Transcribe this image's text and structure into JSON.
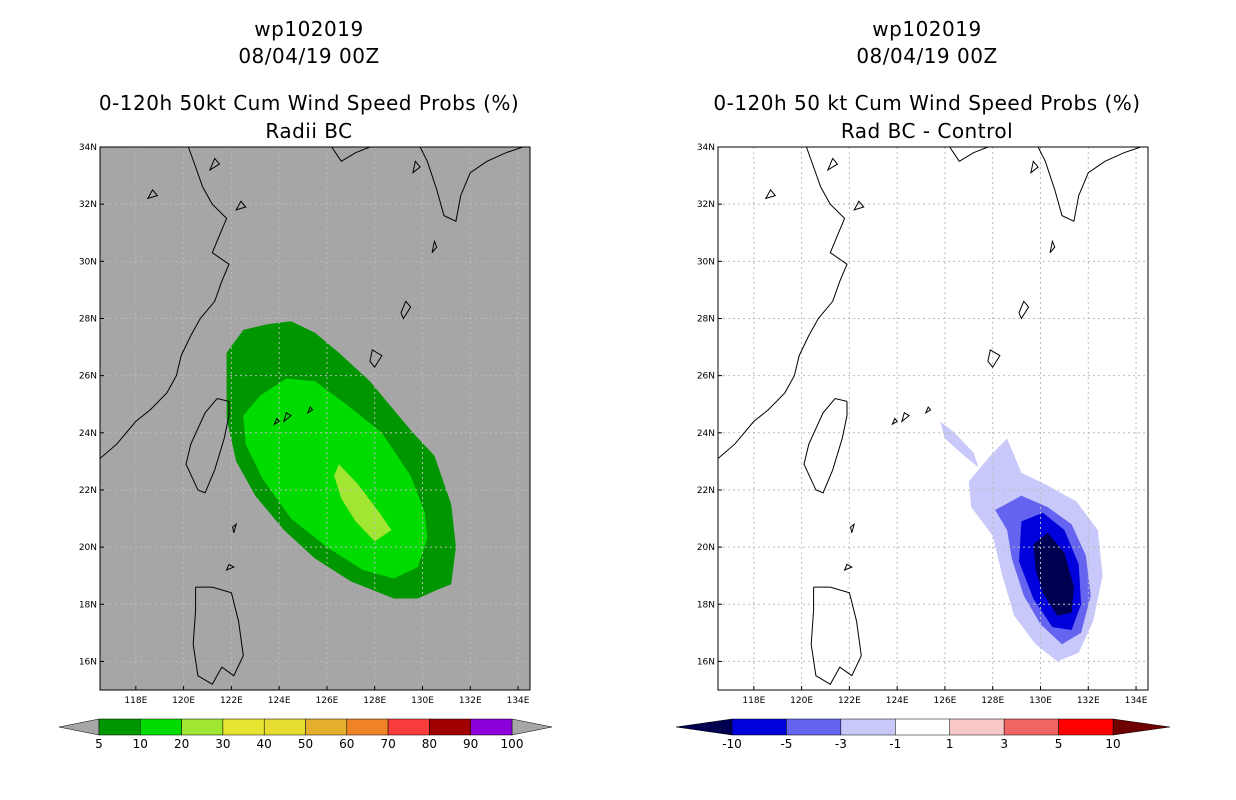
{
  "panels": [
    {
      "storm": "wp102019",
      "datetime": "08/04/19 00Z",
      "title": "0-120h 50kt Cum Wind Speed Probs (%)",
      "subtitle": "Radii BC"
    },
    {
      "storm": "wp102019",
      "datetime": "08/04/19 00Z",
      "title": "0-120h 50 kt Cum Wind Speed Probs (%)",
      "subtitle": "Rad BC - Control"
    }
  ],
  "colors": {
    "ocean_left": "#a6a6a6",
    "ocean_right": "#ffffff",
    "coast": "#000000",
    "grid": "#bbbbbb"
  },
  "chart_data": [
    {
      "type": "heatmap",
      "title": "0-120h 50kt Cum Wind Speed Probs (%)",
      "subtitle": "Radii BC",
      "xlabel": "",
      "ylabel": "",
      "xlim": [
        116.5,
        134.5
      ],
      "ylim": [
        15,
        34
      ],
      "x_ticks": [
        118,
        120,
        122,
        124,
        126,
        128,
        130,
        132,
        134
      ],
      "x_tick_labels": [
        "118E",
        "120E",
        "122E",
        "124E",
        "126E",
        "128E",
        "130E",
        "132E",
        "134E"
      ],
      "y_ticks": [
        16,
        18,
        20,
        22,
        24,
        26,
        28,
        30,
        32,
        34
      ],
      "y_tick_labels": [
        "16N",
        "18N",
        "20N",
        "22N",
        "24N",
        "26N",
        "28N",
        "30N",
        "32N",
        "34N"
      ],
      "colorbar": {
        "levels": [
          "5",
          "10",
          "20",
          "30",
          "40",
          "50",
          "60",
          "70",
          "80",
          "90",
          "100"
        ],
        "colors": [
          "#009600",
          "#00dc00",
          "#a0e632",
          "#e6e632",
          "#e6dc32",
          "#e6af2d",
          "#f08228",
          "#fa3c3c",
          "#a00000",
          "#8c00dc"
        ],
        "extend_under": "#a6a6a6",
        "extend_over": "#a6a6a6"
      },
      "contours": [
        {
          "level": 5,
          "color": "#009600",
          "polygon": [
            [
              121.8,
              26.8
            ],
            [
              122.5,
              27.6
            ],
            [
              123.5,
              27.8
            ],
            [
              124.5,
              27.9
            ],
            [
              125.5,
              27.5
            ],
            [
              126.5,
              26.8
            ],
            [
              127.8,
              25.8
            ],
            [
              129,
              24.6
            ],
            [
              129.6,
              24
            ],
            [
              130.5,
              23.2
            ],
            [
              131.2,
              21.5
            ],
            [
              131.4,
              20
            ],
            [
              131.2,
              18.7
            ],
            [
              130.6,
              18.5
            ],
            [
              129.8,
              18.2
            ],
            [
              128.8,
              18.2
            ],
            [
              127,
              18.8
            ],
            [
              125.5,
              19.6
            ],
            [
              124.2,
              20.6
            ],
            [
              123,
              21.8
            ],
            [
              122.2,
              23
            ],
            [
              121.8,
              24.5
            ]
          ]
        },
        {
          "level": 10,
          "color": "#00dc00",
          "polygon": [
            [
              122.5,
              24.6
            ],
            [
              123.2,
              25.3
            ],
            [
              124.3,
              25.9
            ],
            [
              125.5,
              25.8
            ],
            [
              126.8,
              25
            ],
            [
              128.3,
              24
            ],
            [
              129.5,
              22.5
            ],
            [
              130.1,
              21.2
            ],
            [
              130.2,
              20.3
            ],
            [
              129.8,
              19.3
            ],
            [
              128.8,
              18.9
            ],
            [
              127.5,
              19.2
            ],
            [
              126,
              20
            ],
            [
              124.5,
              21
            ],
            [
              123.3,
              22.4
            ],
            [
              122.6,
              23.6
            ]
          ]
        },
        {
          "level": 20,
          "color": "#a0e632",
          "polygon": [
            [
              126.5,
              22.9
            ],
            [
              127.3,
              22.2
            ],
            [
              128.2,
              21.2
            ],
            [
              128.7,
              20.6
            ],
            [
              128,
              20.2
            ],
            [
              127.2,
              20.9
            ],
            [
              126.6,
              21.7
            ],
            [
              126.3,
              22.5
            ]
          ]
        }
      ]
    },
    {
      "type": "heatmap",
      "title": "0-120h 50 kt Cum Wind Speed Probs (%)",
      "subtitle": "Rad BC - Control",
      "xlabel": "",
      "ylabel": "",
      "xlim": [
        116.5,
        134.5
      ],
      "ylim": [
        15,
        34
      ],
      "x_ticks": [
        118,
        120,
        122,
        124,
        126,
        128,
        130,
        132,
        134
      ],
      "x_tick_labels": [
        "118E",
        "120E",
        "122E",
        "124E",
        "126E",
        "128E",
        "130E",
        "132E",
        "134E"
      ],
      "y_ticks": [
        16,
        18,
        20,
        22,
        24,
        26,
        28,
        30,
        32,
        34
      ],
      "y_tick_labels": [
        "16N",
        "18N",
        "20N",
        "22N",
        "24N",
        "26N",
        "28N",
        "30N",
        "32N",
        "34N"
      ],
      "colorbar": {
        "levels": [
          "-10",
          "-5",
          "-3",
          "-1",
          "1",
          "3",
          "5",
          "10"
        ],
        "colors": [
          "#0000dc",
          "#6464f0",
          "#c8c8fa",
          "#ffffff",
          "#fac8c8",
          "#f06464",
          "#ff0000"
        ],
        "extend_under": "#000050",
        "extend_over": "#6e0000"
      },
      "contours": [
        {
          "level": -1,
          "color": "#c8c8fa",
          "polygon": [
            [
              127,
              22.3
            ],
            [
              127.9,
              23.2
            ],
            [
              128.6,
              23.8
            ],
            [
              129.2,
              22.6
            ],
            [
              130.2,
              22.2
            ],
            [
              131.5,
              21.6
            ],
            [
              132.4,
              20.6
            ],
            [
              132.6,
              19
            ],
            [
              132.2,
              17.4
            ],
            [
              131.6,
              16.3
            ],
            [
              130.7,
              16
            ],
            [
              129.8,
              16.6
            ],
            [
              128.9,
              17.6
            ],
            [
              128.4,
              19
            ],
            [
              128,
              20.4
            ],
            [
              127.1,
              21.4
            ]
          ]
        },
        {
          "level": -1,
          "color": "#c8c8fa",
          "polygon": [
            [
              125.8,
              24.4
            ],
            [
              126.4,
              24
            ],
            [
              127.2,
              23.3
            ],
            [
              127.4,
              22.8
            ],
            [
              126.8,
              23.2
            ],
            [
              126,
              23.8
            ]
          ]
        },
        {
          "level": -3,
          "color": "#6464f0",
          "polygon": [
            [
              128.1,
              21.3
            ],
            [
              129.2,
              21.8
            ],
            [
              130.3,
              21.4
            ],
            [
              131.3,
              20.8
            ],
            [
              131.9,
              19.7
            ],
            [
              132.1,
              18.3
            ],
            [
              131.7,
              17
            ],
            [
              130.9,
              16.6
            ],
            [
              130,
              17.3
            ],
            [
              129.3,
              18.3
            ],
            [
              128.8,
              19.6
            ],
            [
              128.6,
              20.6
            ]
          ]
        },
        {
          "level": -5,
          "color": "#0000dc",
          "polygon": [
            [
              129.2,
              20.9
            ],
            [
              130.1,
              21.2
            ],
            [
              131,
              20.6
            ],
            [
              131.6,
              19.4
            ],
            [
              131.7,
              18
            ],
            [
              131.3,
              17.1
            ],
            [
              130.5,
              17.2
            ],
            [
              129.7,
              18.2
            ],
            [
              129.1,
              19.5
            ]
          ]
        },
        {
          "level": -10,
          "color": "#000050",
          "polygon": [
            [
              129.7,
              20.1
            ],
            [
              130.3,
              20.5
            ],
            [
              131,
              19.8
            ],
            [
              131.4,
              18.6
            ],
            [
              131.3,
              17.7
            ],
            [
              130.7,
              17.6
            ],
            [
              130.1,
              18.4
            ],
            [
              129.8,
              19.2
            ]
          ]
        }
      ]
    }
  ]
}
